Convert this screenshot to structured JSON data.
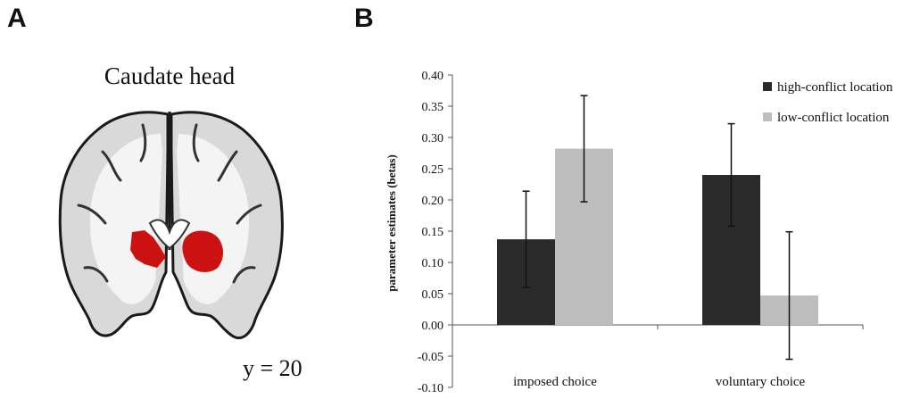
{
  "panels": {
    "a_label": "A",
    "b_label": "B"
  },
  "brain": {
    "title": "Caudate head",
    "coordinate": "y = 20",
    "highlight_color": "#cc1111"
  },
  "chart_data": {
    "type": "bar",
    "categories": [
      "imposed choice",
      "voluntary choice"
    ],
    "series": [
      {
        "name": "high-conflict location",
        "color": "#2a2a2a",
        "values": [
          0.137,
          0.24
        ],
        "error": [
          0.077,
          0.082
        ]
      },
      {
        "name": "low-conflict location",
        "color": "#bdbdbd",
        "values": [
          0.282,
          0.047
        ],
        "error": [
          0.085,
          0.102
        ]
      }
    ],
    "ylabel": "parameter estimates (betas)",
    "xlabel": "",
    "ylim": [
      -0.1,
      0.4
    ],
    "yticks": [
      "0.40",
      "0.35",
      "0.30",
      "0.25",
      "0.20",
      "0.15",
      "0.10",
      "0.05",
      "0.00",
      "-0.05",
      "-0.10"
    ],
    "grid": false,
    "legend_position": "top-right"
  }
}
